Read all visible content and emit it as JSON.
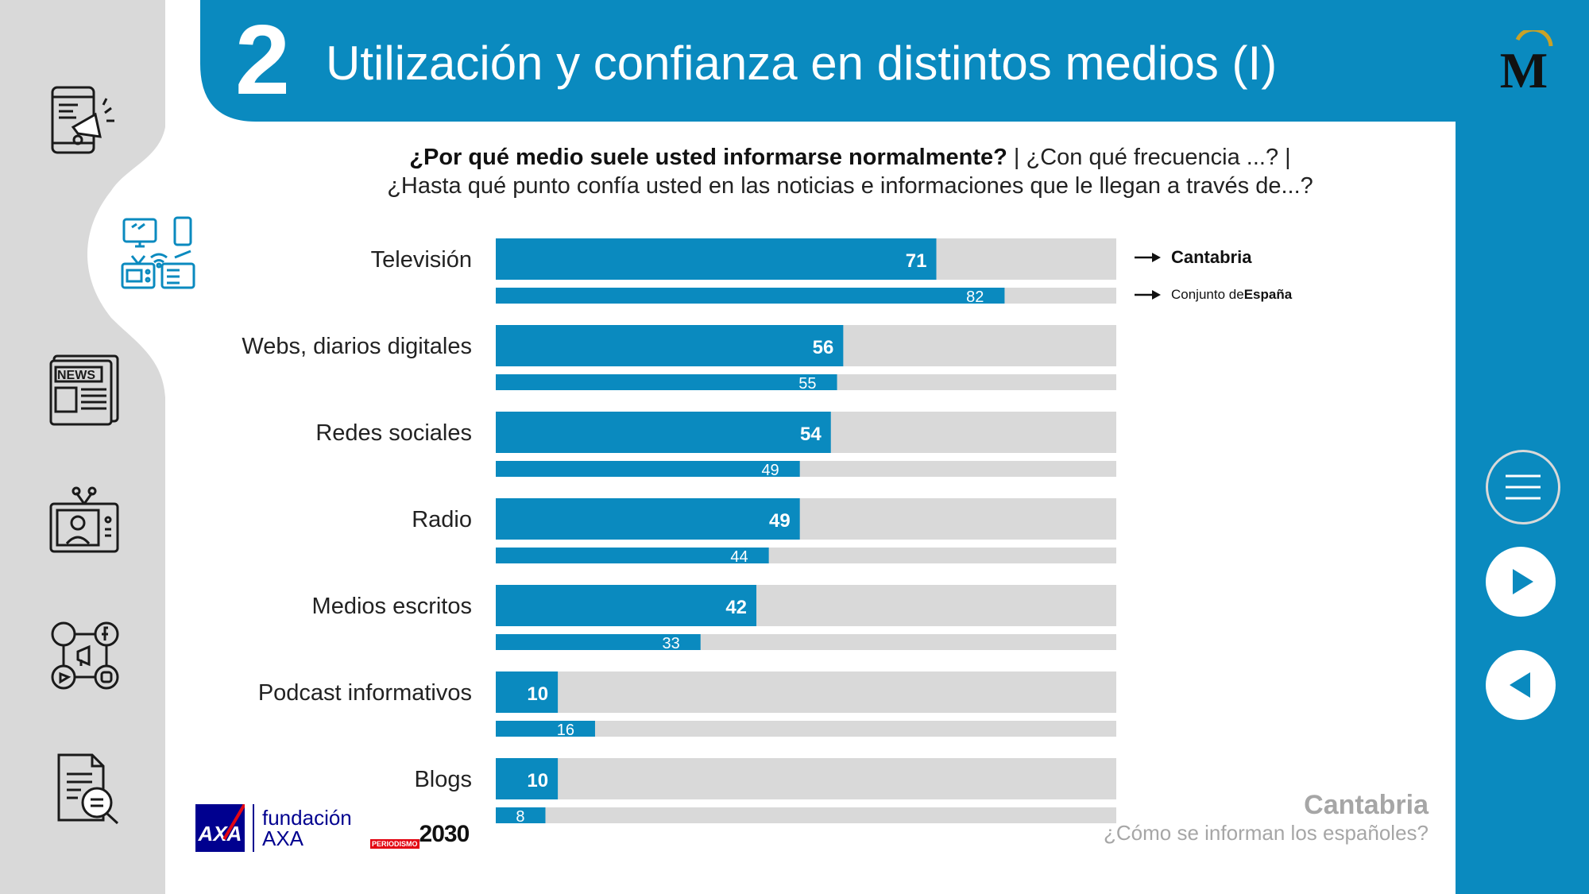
{
  "colors": {
    "accent": "#0a8abf",
    "track": "#d9d9d9",
    "rail": "#d9d9d9",
    "footer_text": "#a6a6a6"
  },
  "header": {
    "section_number": "2",
    "title": "Utilización y confianza en distintos medios (I)",
    "logo_letter": "M"
  },
  "question": {
    "bold": "¿Por qué medio suele usted informarse normalmente?",
    "separator": "|",
    "part2": "¿Con qué frecuencia ...?",
    "line2": "¿Hasta qué punto confía usted en las noticias e informaciones que le llegan a través de...?"
  },
  "sidebar": {
    "icons": [
      "mobile-megaphone-icon",
      "media-devices-icon",
      "newspaper-icon",
      "tv-presenter-icon",
      "social-media-icon",
      "document-search-icon"
    ],
    "active_index": 1,
    "news_label": "NEWS"
  },
  "legend": {
    "primary": "Cantabria",
    "secondary_prefix": "Conjunto de ",
    "secondary_bold": "España"
  },
  "chart_data": {
    "type": "bar",
    "orientation": "horizontal",
    "categories": [
      "Televisión",
      "Webs, diarios digitales",
      "Redes sociales",
      "Radio",
      "Medios escritos",
      "Podcast informativos",
      "Blogs"
    ],
    "series": [
      {
        "name": "Cantabria",
        "values": [
          71,
          56,
          54,
          49,
          42,
          10,
          10
        ]
      },
      {
        "name": "Conjunto de España",
        "values": [
          82,
          55,
          49,
          44,
          33,
          16,
          8
        ]
      }
    ],
    "xlim": [
      0,
      100
    ],
    "grid": false,
    "legend_position": "right"
  },
  "nav": {
    "menu": "menu-icon",
    "next": "play-icon",
    "back": "back-icon"
  },
  "footer": {
    "region": "Cantabria",
    "subtitle": "¿Cómo se informan los españoles?",
    "fund_line1": "fundación",
    "fund_line2": "AXA",
    "axa_logo_text": "AXA",
    "periodismo_small": "PERIODISMO",
    "periodismo_big": "2030"
  }
}
